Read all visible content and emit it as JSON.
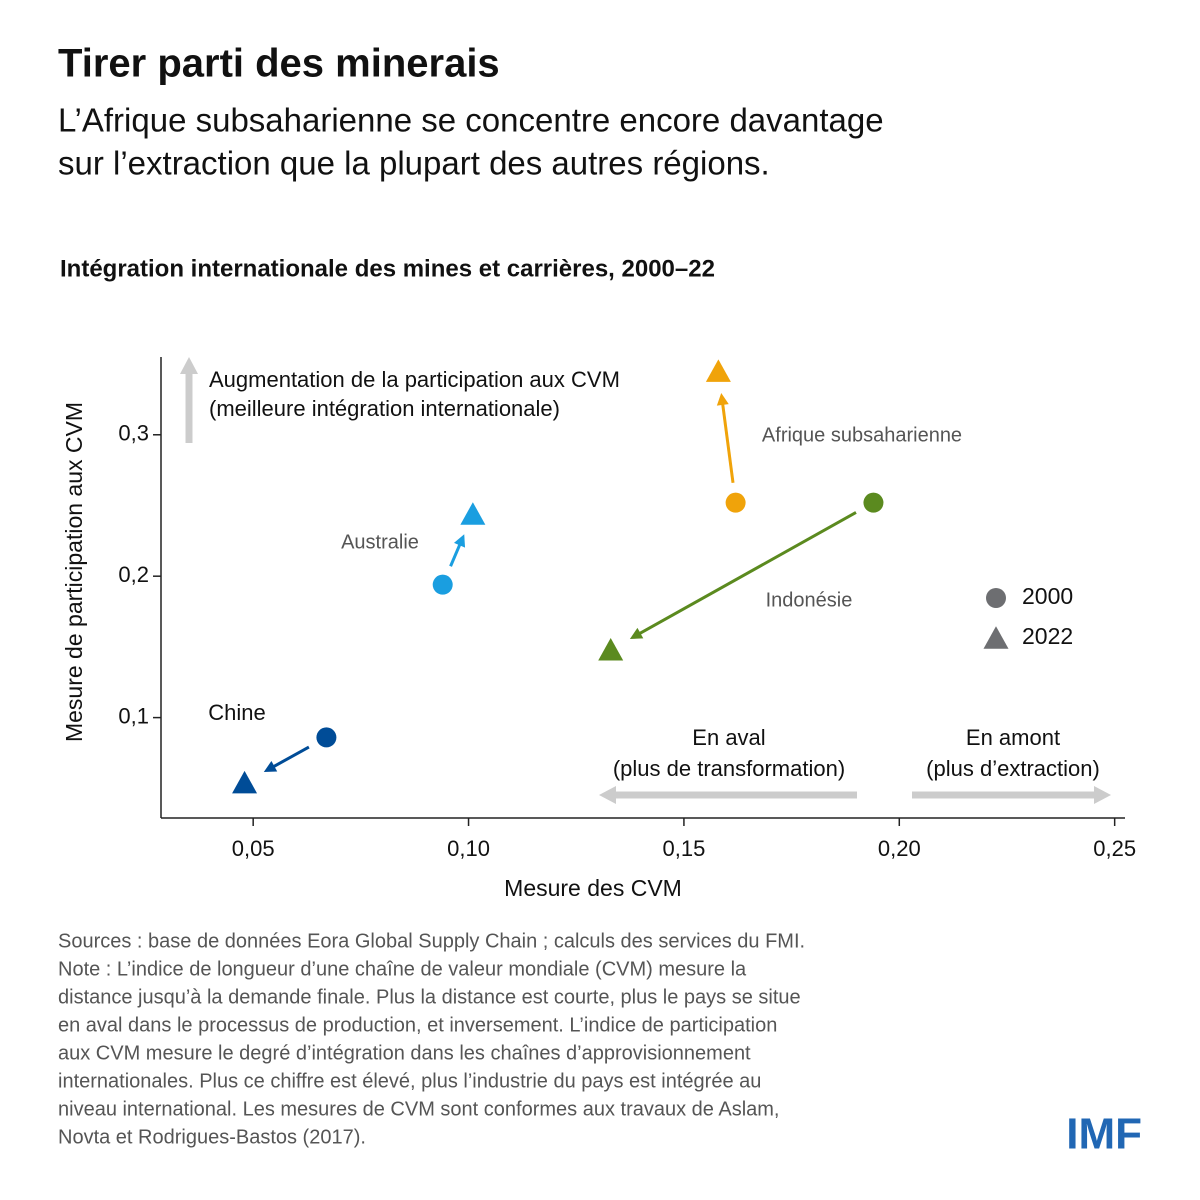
{
  "header": {
    "title": "Tirer parti des minerais",
    "subtitle": [
      "L’Afrique subsaharienne se concentre encore davantage",
      "sur l’extraction que la plupart des autres régions."
    ]
  },
  "chart_data": {
    "type": "scatter",
    "title": "Intégration internationale des mines et carrières, 2000–22",
    "x_label": "Mesure des CVM",
    "y_label": "Mesure de participation aux CVM",
    "xlim": [
      0.0286,
      0.2524
    ],
    "ylim": [
      0.029,
      0.355
    ],
    "xticks": [
      {
        "value": 0.05,
        "label": "0,05"
      },
      {
        "value": 0.1,
        "label": "0,10"
      },
      {
        "value": 0.15,
        "label": "0,15"
      },
      {
        "value": 0.2,
        "label": "0,20"
      },
      {
        "value": 0.25,
        "label": "0,25"
      }
    ],
    "yticks": [
      {
        "value": 0.1,
        "label": "0,1"
      },
      {
        "value": 0.2,
        "label": "0,2"
      },
      {
        "value": 0.3,
        "label": "0,3"
      }
    ],
    "legend": [
      "2000",
      "2022"
    ],
    "legend_color": "#6d6e71",
    "series": [
      {
        "name": "Chine",
        "color": "#004c97",
        "x": [
          0.067,
          0.048
        ],
        "values": [
          0.086,
          0.054
        ]
      },
      {
        "name": "Australie",
        "color": "#1a9ee0",
        "x": [
          0.094,
          0.101
        ],
        "values": [
          0.194,
          0.244
        ]
      },
      {
        "name": "Afrique subsaharienne",
        "color": "#f0a30a",
        "x": [
          0.162,
          0.158
        ],
        "values": [
          0.252,
          0.345
        ]
      },
      {
        "name": "Indonésie",
        "color": "#5b8a1f",
        "x": [
          0.194,
          0.133
        ],
        "values": [
          0.252,
          0.148
        ]
      }
    ],
    "annotations": {
      "up": [
        "Augmentation de la participation aux CVM",
        "(meilleure intégration internationale)"
      ],
      "downstream": [
        "En aval",
        "(plus de transformation)"
      ],
      "upstream": [
        "En amont",
        "(plus d’extraction)"
      ]
    }
  },
  "footer": {
    "sources": "Sources : base de données Eora Global Supply Chain ; calculs des services du FMI.",
    "note": [
      "Note : L’indice de longueur d’une chaîne de valeur mondiale (CVM) mesure la",
      "distance jusqu’à la demande finale. Plus la distance est courte, plus le pays se situe",
      "en aval dans le processus de production, et inversement. L’indice de participation",
      "aux CVM mesure le degré d’intégration dans les chaînes d’approvisionnement",
      "internationales. Plus ce chiffre est élevé, plus l’industrie du pays est intégrée au",
      "niveau international. Les mesures de CVM sont conformes aux travaux de Aslam,",
      "Novta et Rodrigues-Bastos (2017)."
    ],
    "logo": "IMF"
  }
}
